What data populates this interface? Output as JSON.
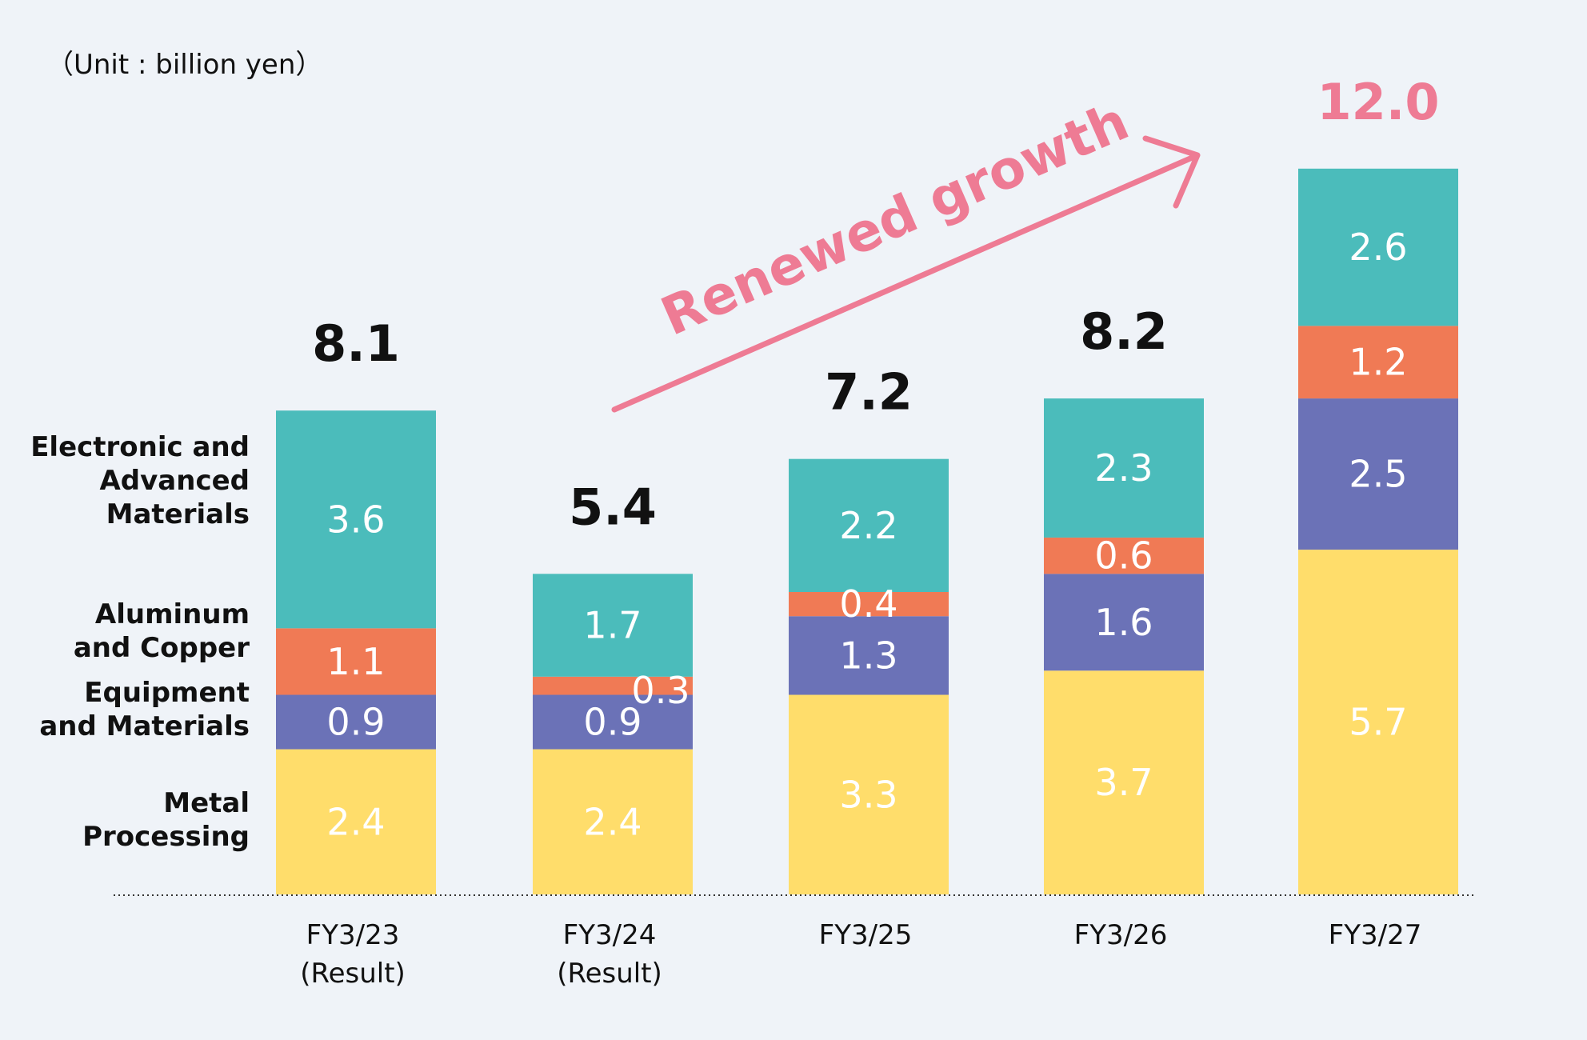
{
  "chart_data": {
    "type": "bar",
    "stacked": true,
    "unit_label": "（Unit : billion yen）",
    "categories": [
      {
        "label_line1": "FY3/23",
        "label_line2": "(Result)"
      },
      {
        "label_line1": "FY3/24",
        "label_line2": "(Result)"
      },
      {
        "label_line1": "FY3/25",
        "label_line2": ""
      },
      {
        "label_line1": "FY3/26",
        "label_line2": ""
      },
      {
        "label_line1": "FY3/27",
        "label_line2": ""
      }
    ],
    "series": [
      {
        "name_lines": [
          "Metal",
          "Processing"
        ],
        "color": "#ffdd6b",
        "values": [
          2.4,
          2.4,
          3.3,
          3.7,
          5.7
        ]
      },
      {
        "name_lines": [
          "Equipment",
          "and Materials"
        ],
        "color": "#6b72b7",
        "values": [
          0.9,
          0.9,
          1.3,
          1.6,
          2.5
        ]
      },
      {
        "name_lines": [
          "Aluminum",
          "and Copper"
        ],
        "color": "#f07a55",
        "values": [
          1.1,
          0.3,
          0.4,
          0.6,
          1.2
        ]
      },
      {
        "name_lines": [
          "Electronic and",
          "Advanced",
          "Materials"
        ],
        "color": "#4bbcbb",
        "values": [
          3.6,
          1.7,
          2.2,
          2.3,
          2.6
        ]
      }
    ],
    "segment_labels": [
      [
        "2.4",
        "0.9",
        "1.1",
        "3.6"
      ],
      [
        "2.4",
        "0.9",
        "0.3",
        "1.7"
      ],
      [
        "3.3",
        "1.3",
        "0.4",
        "2.2"
      ],
      [
        "3.7",
        "1.6",
        "0.6",
        "2.3"
      ],
      [
        "5.7",
        "2.5",
        "1.2",
        "2.6"
      ]
    ],
    "totals": [
      "8.1",
      "5.4",
      "7.2",
      "8.2",
      "12.0"
    ],
    "highlight_total_color": "#ee7b94",
    "annotation": {
      "text": "Renewed growth",
      "color": "#ee7b94"
    },
    "ylim": [
      0,
      12.0
    ],
    "grid": false
  }
}
